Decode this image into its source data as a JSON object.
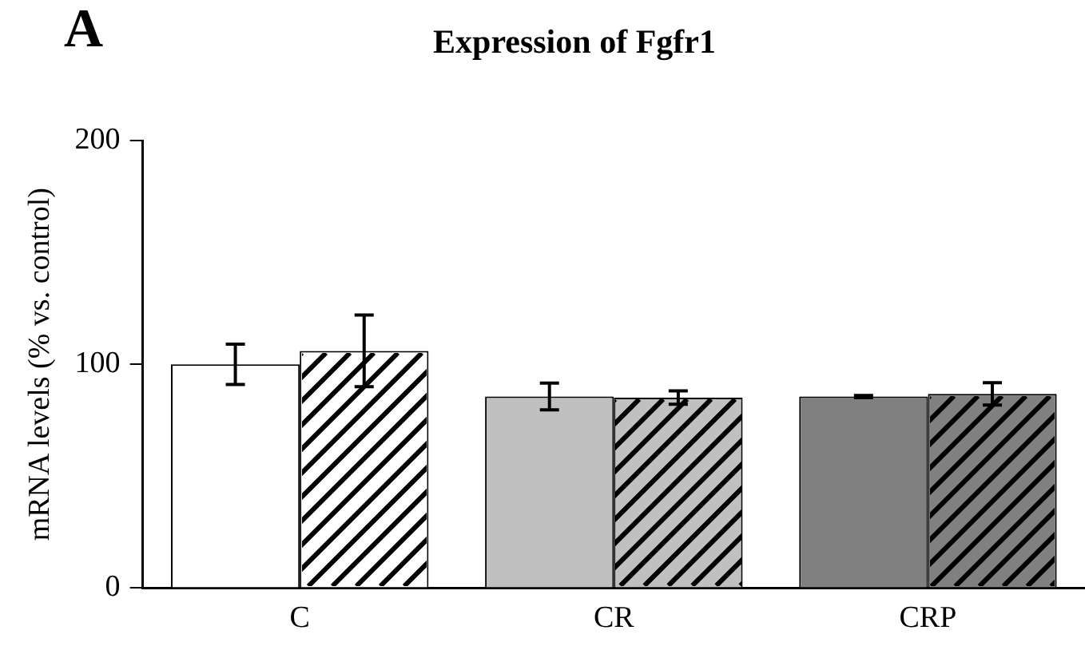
{
  "chart_data": {
    "type": "bar",
    "title": "Expression of Fgfr1",
    "ylabel": "mRNA levels (% vs. control)",
    "annotations": [
      "A"
    ],
    "categories": [
      "C",
      "CR",
      "CRP"
    ],
    "series": [
      {
        "colors": [
          "#ffffff",
          "#c0c0c0",
          "#808080"
        ],
        "values": [
          100,
          85.6,
          85.6
        ],
        "errors": [
          9,
          6,
          0.5
        ]
      },
      {
        "colors": [
          "#ffffff",
          "#c0c0c0",
          "#808080"
        ],
        "values": [
          106,
          85.1,
          86.8
        ],
        "errors": [
          16,
          3,
          5
        ]
      }
    ],
    "ylim": [
      0,
      200
    ],
    "yticks": [
      0,
      100,
      200
    ],
    "grid": false,
    "legend": false
  }
}
